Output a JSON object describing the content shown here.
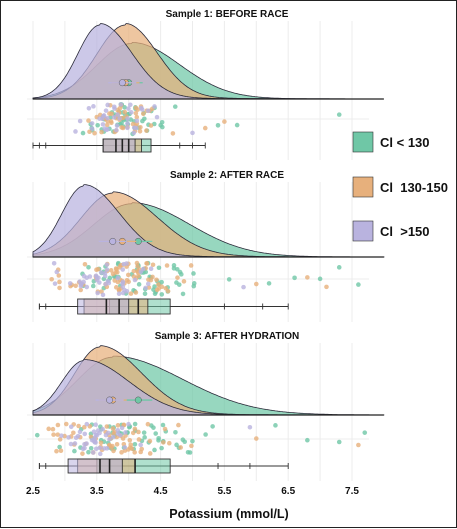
{
  "chart_data": {
    "type": "raincloud",
    "xlabel": "Potassium (mmol/L)",
    "x_ticks": [
      2.5,
      3.5,
      4.5,
      5.5,
      6.5,
      7.5
    ],
    "x_range": [
      2.5,
      8.0
    ],
    "legend": {
      "placement": "right",
      "entries": [
        {
          "label": "Cl < 130",
          "color": "#6fc7a6"
        },
        {
          "label": "Cl  130-150",
          "color": "#e7b07c"
        },
        {
          "label": "Cl  >150",
          "color": "#b9b3df"
        }
      ]
    },
    "panels": [
      {
        "title": "Sample 1: BEFORE RACE",
        "density": [
          {
            "group": "Cl < 130",
            "mode": 4.05,
            "sd_left": 0.55,
            "sd_right": 0.75,
            "height": 0.75,
            "tail_until": 7.9
          },
          {
            "group": "Cl  130-150",
            "mode": 3.95,
            "sd_left": 0.45,
            "sd_right": 0.5,
            "height": 1.0,
            "tail_until": 7.4
          },
          {
            "group": "Cl  >150",
            "mode": 3.55,
            "sd_left": 0.35,
            "sd_right": 0.5,
            "height": 1.0,
            "tail_until": 6.5
          }
        ],
        "means": [
          {
            "group": "Cl < 130",
            "mean": 4.0
          },
          {
            "group": "Cl  130-150",
            "mean": 3.95
          },
          {
            "group": "Cl  >150",
            "mean": 3.9
          }
        ],
        "points": [
          {
            "group": "Cl < 130",
            "center": 4.0,
            "spread": 0.6,
            "count": 55,
            "outliers": [
              5.4,
              5.7,
              7.3
            ]
          },
          {
            "group": "Cl  130-150",
            "center": 3.9,
            "spread": 0.5,
            "count": 50,
            "outliers": [
              5.2,
              5.5
            ]
          },
          {
            "group": "Cl  >150",
            "center": 3.8,
            "spread": 0.5,
            "count": 40,
            "outliers": [
              5.0
            ]
          }
        ],
        "boxes": [
          {
            "group": "Cl < 130",
            "min": 2.5,
            "q1": 3.6,
            "median": 4.0,
            "q3": 4.35,
            "max": 5.2
          },
          {
            "group": "Cl  130-150",
            "min": 2.6,
            "q1": 3.6,
            "median": 3.9,
            "q3": 4.2,
            "max": 5.0
          },
          {
            "group": "Cl  >150",
            "min": 2.7,
            "q1": 3.6,
            "median": 3.8,
            "q3": 4.1,
            "max": 4.8
          }
        ]
      },
      {
        "title": "Sample 2: AFTER RACE",
        "density": [
          {
            "group": "Cl < 130",
            "mode": 4.05,
            "sd_left": 0.6,
            "sd_right": 0.9,
            "height": 0.75,
            "tail_until": 8.0
          },
          {
            "group": "Cl  130-150",
            "mode": 3.75,
            "sd_left": 0.5,
            "sd_right": 0.7,
            "height": 0.9,
            "tail_until": 8.0
          },
          {
            "group": "Cl  >150",
            "mode": 3.3,
            "sd_left": 0.35,
            "sd_right": 0.55,
            "height": 1.0,
            "tail_until": 6.5
          }
        ],
        "means": [
          {
            "group": "Cl < 130",
            "mean": 4.15
          },
          {
            "group": "Cl  130-150",
            "mean": 3.9
          },
          {
            "group": "Cl  >150",
            "mean": 3.75
          }
        ],
        "points": [
          {
            "group": "Cl < 130",
            "center": 4.2,
            "spread": 0.9,
            "count": 60,
            "outliers": [
              6.2,
              6.6,
              7.0,
              7.3,
              7.6
            ]
          },
          {
            "group": "Cl  130-150",
            "center": 3.9,
            "spread": 0.8,
            "count": 75,
            "outliers": [
              6.0,
              6.8,
              7.1
            ]
          },
          {
            "group": "Cl  >150",
            "center": 3.6,
            "spread": 0.6,
            "count": 45,
            "outliers": [
              5.8
            ]
          }
        ],
        "boxes": [
          {
            "group": "Cl < 130",
            "min": 2.6,
            "q1": 3.7,
            "median": 4.15,
            "q3": 4.65,
            "max": 6.5
          },
          {
            "group": "Cl  130-150",
            "min": 2.6,
            "q1": 3.3,
            "median": 3.85,
            "q3": 4.3,
            "max": 6.1
          },
          {
            "group": "Cl  >150",
            "min": 2.7,
            "q1": 3.2,
            "median": 3.65,
            "q3": 4.0,
            "max": 5.5
          }
        ]
      },
      {
        "title": "Sample 3: AFTER HYDRATION",
        "density": [
          {
            "group": "Cl < 130",
            "mode": 3.75,
            "sd_left": 0.55,
            "sd_right": 1.1,
            "height": 0.85,
            "tail_until": 8.0
          },
          {
            "group": "Cl  130-150",
            "mode": 3.55,
            "sd_left": 0.4,
            "sd_right": 0.65,
            "height": 1.0,
            "tail_until": 7.8
          },
          {
            "group": "Cl  >150",
            "mode": 3.3,
            "sd_left": 0.35,
            "sd_right": 0.7,
            "height": 0.8,
            "tail_until": 6.8
          }
        ],
        "means": [
          {
            "group": "Cl < 130",
            "mean": 4.15
          },
          {
            "group": "Cl  130-150",
            "mean": 3.75
          },
          {
            "group": "Cl  >150",
            "mean": 3.7
          }
        ],
        "points": [
          {
            "group": "Cl < 130",
            "center": 4.0,
            "spread": 1.0,
            "count": 60,
            "outliers": [
              6.3,
              6.8,
              7.3,
              7.7
            ]
          },
          {
            "group": "Cl  130-150",
            "center": 3.7,
            "spread": 0.8,
            "count": 70,
            "outliers": [
              6.0,
              7.6
            ]
          },
          {
            "group": "Cl  >150",
            "center": 3.5,
            "spread": 0.6,
            "count": 45,
            "outliers": [
              5.9
            ]
          }
        ],
        "boxes": [
          {
            "group": "Cl < 130",
            "min": 2.6,
            "q1": 3.5,
            "median": 4.1,
            "q3": 4.65,
            "max": 6.5
          },
          {
            "group": "Cl  130-150",
            "min": 2.6,
            "q1": 3.2,
            "median": 3.7,
            "q3": 4.1,
            "max": 5.9
          },
          {
            "group": "Cl  >150",
            "min": 2.7,
            "q1": 3.05,
            "median": 3.55,
            "q3": 3.9,
            "max": 5.4
          }
        ]
      }
    ]
  }
}
